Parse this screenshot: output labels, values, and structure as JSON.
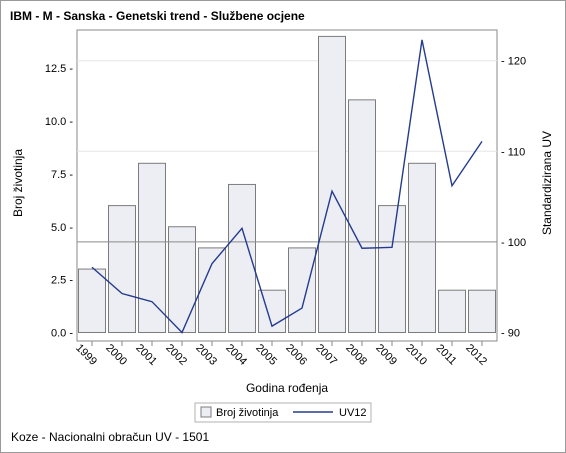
{
  "title": "IBM - M - Sanska - Genetski trend - Službene ocjene",
  "footnote": "Koze - Nacionalni obračun UV - 1501",
  "chart_data": {
    "type": "bar",
    "title": "IBM - M - Sanska - Genetski trend - Službene ocjene",
    "xlabel": "Godina rođenja",
    "ylabel": "Broj životinja",
    "y2label": "Standardizirana UV",
    "categories": [
      "1999",
      "2000",
      "2001",
      "2002",
      "2003",
      "2004",
      "2005",
      "2006",
      "2007",
      "2008",
      "2009",
      "2010",
      "2011",
      "2012"
    ],
    "series": [
      {
        "name": "Broj životinja",
        "type": "bar",
        "axis": "left",
        "color": "#eceef4",
        "values": [
          3,
          6,
          8,
          5,
          4,
          7,
          2,
          4,
          14,
          11,
          6,
          8,
          2,
          2
        ]
      },
      {
        "name": "UV12",
        "type": "line",
        "axis": "right",
        "color": "#253b8c",
        "values": [
          97.2,
          94.3,
          93.4,
          90.0,
          97.6,
          101.5,
          90.7,
          92.7,
          105.6,
          99.3,
          99.4,
          122.3,
          106.2,
          111.1
        ]
      }
    ],
    "ylim": [
      0,
      14
    ],
    "yticks": [
      0.0,
      2.5,
      5.0,
      7.5,
      10.0,
      12.5
    ],
    "ytick_labels": [
      "0.0 -",
      "2.5 -",
      "5.0 -",
      "7.5 -",
      "10.0 -",
      "12.5 -"
    ],
    "y2lim": [
      90,
      122
    ],
    "y2ticks": [
      90,
      100,
      110,
      120
    ],
    "y2tick_labels": [
      "- 90",
      "- 100",
      "- 110",
      "- 120"
    ],
    "reference_line_y2": 100,
    "grid": false,
    "legend_position": "bottom",
    "legend": [
      "Broj životinja",
      "UV12"
    ]
  }
}
